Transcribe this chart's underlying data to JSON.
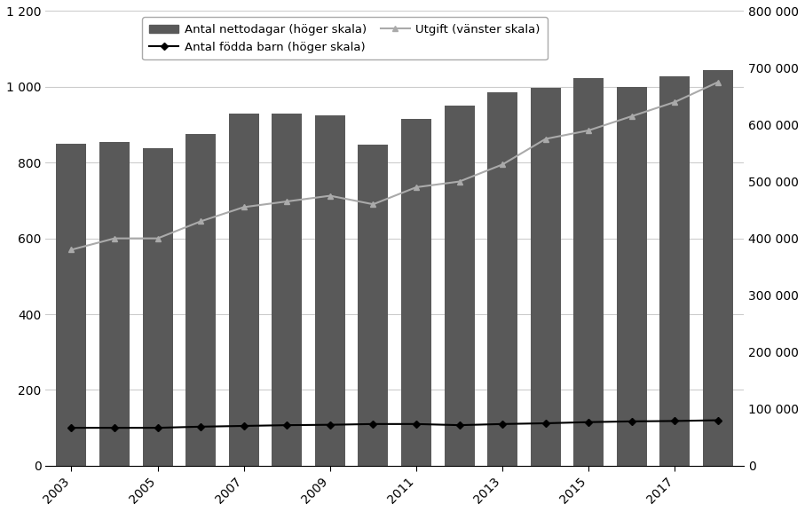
{
  "years": [
    2003,
    2004,
    2005,
    2006,
    2007,
    2008,
    2009,
    2010,
    2011,
    2012,
    2013,
    2014,
    2015,
    2016,
    2017,
    2018
  ],
  "nettodagar": [
    850,
    855,
    838,
    875,
    930,
    930,
    925,
    848,
    915,
    950,
    985,
    998,
    1022,
    1000,
    1028,
    1045
  ],
  "fodda_barn": [
    100,
    100,
    100,
    103,
    105,
    107,
    108,
    110,
    110,
    107,
    110,
    112,
    115,
    117,
    118,
    120
  ],
  "utgift": [
    380000,
    400000,
    400000,
    430000,
    455000,
    465000,
    475000,
    460000,
    490000,
    500000,
    530000,
    575000,
    590000,
    615000,
    640000,
    675000
  ],
  "bar_color": "#595959",
  "fodda_barn_color": "#000000",
  "utgift_color": "#aaaaaa",
  "right_ylim": [
    0,
    800000
  ],
  "right_yticks": [
    0,
    100000,
    200000,
    300000,
    400000,
    500000,
    600000,
    700000,
    800000
  ],
  "right_yticklabels": [
    "0",
    "100 000",
    "200 000",
    "300 000",
    "400 000",
    "500 000",
    "600 000",
    "700 000",
    "800 000"
  ],
  "left_ylim": [
    0,
    1200
  ],
  "left_yticks": [
    0,
    200,
    400,
    600,
    800,
    1000,
    1200
  ],
  "left_yticklabels": [
    "0",
    "200",
    "400",
    "600",
    "800",
    "1 000",
    "1 200"
  ],
  "xtick_positions": [
    0,
    2,
    4,
    6,
    8,
    10,
    12,
    14
  ],
  "xtick_labels": [
    "2003",
    "2005",
    "2007",
    "2009",
    "2011",
    "2013",
    "2015",
    "2017"
  ],
  "legend_nettodagar": "Antal nettodagar (höger skala)",
  "legend_fodda": "Antal födda barn (höger skala)",
  "legend_utgift": "Utgift (vänster skala)",
  "background_color": "#ffffff"
}
